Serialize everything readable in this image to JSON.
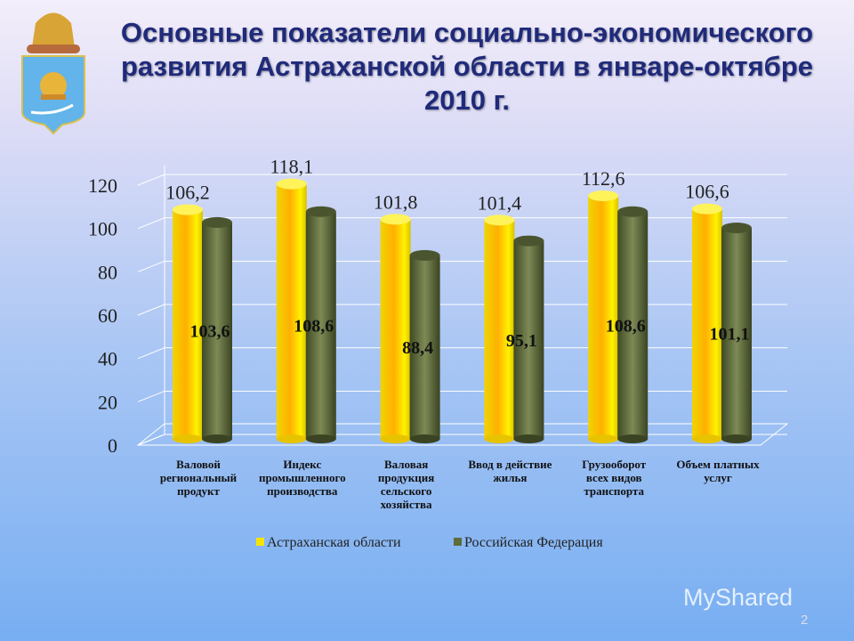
{
  "slide": {
    "title": "Основные показатели социально-экономического развития Астраханской области в январе-октябре 2010 г.",
    "page_number": "2",
    "watermark": "MyShared"
  },
  "chart_data": {
    "type": "bar",
    "categories": [
      "Валовой региональный продукт",
      "Индекс промышленного производства",
      "Валовая продукция сельского хозяйства",
      "Ввод в действие жилья",
      "Грузооборот всех видов транспорта",
      "Объем платных услуг"
    ],
    "series": [
      {
        "name": "Астраханская области",
        "values": [
          106.2,
          118.1,
          101.8,
          101.4,
          112.6,
          106.6
        ],
        "labels": [
          "106,2",
          "118,1",
          "101,8",
          "101,4",
          "112,6",
          "106,6"
        ],
        "color": "#f5e400"
      },
      {
        "name": "Российская Федерация",
        "values": [
          103.6,
          108.6,
          88.4,
          95.1,
          108.6,
          101.1
        ],
        "labels": [
          "103,6",
          "108,6",
          "88,4",
          "95,1",
          "108,6",
          "101,1"
        ],
        "color": "#5e6b3a"
      }
    ],
    "yticks": [
      "0",
      "20",
      "40",
      "60",
      "80",
      "100",
      "120"
    ],
    "ylim": [
      0,
      120
    ],
    "grid": true,
    "legend": "bottom",
    "style": "3d-cylinder"
  }
}
